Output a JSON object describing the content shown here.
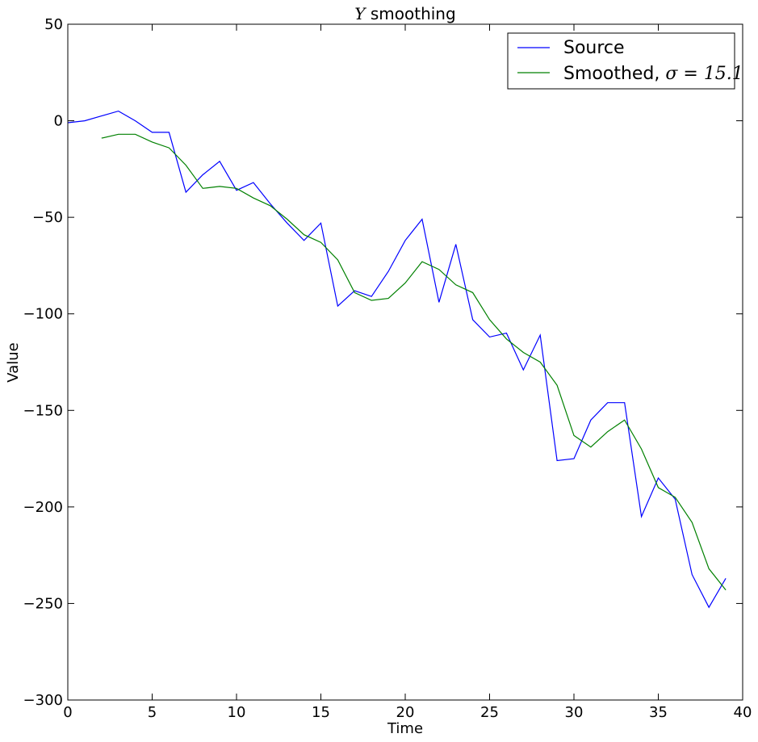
{
  "chart_data": {
    "type": "line",
    "title": "Y smoothing",
    "title_math": "Y",
    "title_text": " smoothing",
    "xlabel": "Time",
    "ylabel": "Value",
    "xlim": [
      0,
      40
    ],
    "ylim": [
      -300,
      50
    ],
    "xticks": [
      0,
      5,
      10,
      15,
      20,
      25,
      30,
      35,
      40
    ],
    "yticks": [
      50,
      0,
      -50,
      -100,
      -150,
      -200,
      -250,
      -300
    ],
    "grid": false,
    "legend_position": "top-right",
    "series": [
      {
        "name": "Source",
        "color": "#0000ff",
        "x": [
          0,
          1,
          2,
          3,
          4,
          5,
          6,
          7,
          8,
          9,
          10,
          11,
          12,
          13,
          14,
          15,
          16,
          17,
          18,
          19,
          20,
          21,
          22,
          23,
          24,
          25,
          26,
          27,
          28,
          29,
          30,
          31,
          32,
          33,
          34,
          35,
          36,
          37,
          38,
          39
        ],
        "y": [
          -1,
          0,
          2.5,
          5,
          0,
          -6,
          -6,
          -37,
          -28,
          -21,
          -36,
          -32,
          -43,
          -53,
          -62,
          -53,
          -96,
          -88,
          -91,
          -78,
          -62,
          -51,
          -94,
          -64,
          -103,
          -112,
          -110,
          -129,
          -111,
          -176,
          -175,
          -155,
          -146,
          -146,
          -205,
          -185,
          -196,
          -235,
          -252,
          -237
        ]
      },
      {
        "name": "Smoothed, σ = 15.1",
        "label_text": "Smoothed, ",
        "label_math": "σ = 15.1",
        "color": "#008000",
        "x": [
          2,
          3,
          4,
          5,
          6,
          7,
          8,
          9,
          10,
          11,
          12,
          13,
          14,
          15,
          16,
          17,
          18,
          19,
          20,
          21,
          22,
          23,
          24,
          25,
          26,
          27,
          28,
          29,
          30,
          31,
          32,
          33,
          34,
          35,
          36,
          37,
          38,
          39
        ],
        "y": [
          -9,
          -7,
          -7,
          -11,
          -14,
          -23,
          -35,
          -34,
          -35,
          -40,
          -44,
          -51,
          -59,
          -63,
          -72,
          -89,
          -93,
          -92,
          -84,
          -73,
          -77,
          -85,
          -89,
          -103,
          -113,
          -120,
          -125,
          -137,
          -163,
          -169,
          -161,
          -155,
          -170,
          -190,
          -195,
          -208,
          -232,
          -243
        ]
      }
    ]
  }
}
